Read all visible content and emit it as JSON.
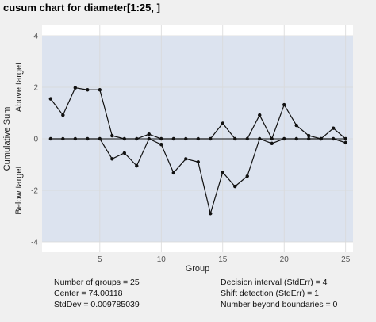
{
  "chart_data": {
    "type": "line",
    "title": "cusum chart for diameter[1:25, ]",
    "xlabel": "Group",
    "ylabel": "Cumulative Sum",
    "above_label": "Above target",
    "below_label": "Below target",
    "xlim": [
      0.3,
      25.6
    ],
    "ylim": [
      -4.4,
      4.4
    ],
    "decision_limits": [
      -4,
      4
    ],
    "x_ticks": [
      5,
      10,
      15,
      20,
      25
    ],
    "y_ticks": [
      -4,
      -2,
      0,
      2,
      4
    ],
    "grid": true,
    "colors": {
      "background": "#f0f0f0",
      "panel": "#ffffff",
      "band": "#dce3ef",
      "grid": "#d9d9d9",
      "line": "#111111"
    },
    "x": [
      1,
      2,
      3,
      4,
      5,
      6,
      7,
      8,
      9,
      10,
      11,
      12,
      13,
      14,
      15,
      16,
      17,
      18,
      19,
      20,
      21,
      22,
      23,
      24,
      25
    ],
    "series": [
      {
        "values": [
          1.55,
          0.92,
          1.98,
          1.9,
          1.9,
          0.12,
          0.0,
          0.0,
          0.18,
          0.0,
          0.0,
          0.0,
          0.0,
          0.0,
          0.6,
          0.0,
          0.0,
          0.92,
          0.0,
          1.32,
          0.52,
          0.12,
          0.0,
          0.41,
          0.0
        ]
      },
      {
        "values": [
          0.0,
          0.0,
          0.0,
          0.0,
          0.0,
          -0.78,
          -0.55,
          -1.05,
          0.0,
          -0.22,
          -1.32,
          -0.78,
          -0.9,
          -2.9,
          -1.3,
          -1.85,
          -1.45,
          0.0,
          -0.18,
          0.0,
          0.0,
          0.0,
          0.0,
          0.0,
          -0.15
        ]
      }
    ]
  },
  "stats": {
    "groups": "Number of groups = 25",
    "center": "Center = 74.00118",
    "stddev": "StdDev = 0.009785039",
    "decision": "Decision interval (StdErr) = 4",
    "shift": "Shift detection (StdErr) = 1",
    "beyond": "Number beyond boundaries = 0"
  }
}
